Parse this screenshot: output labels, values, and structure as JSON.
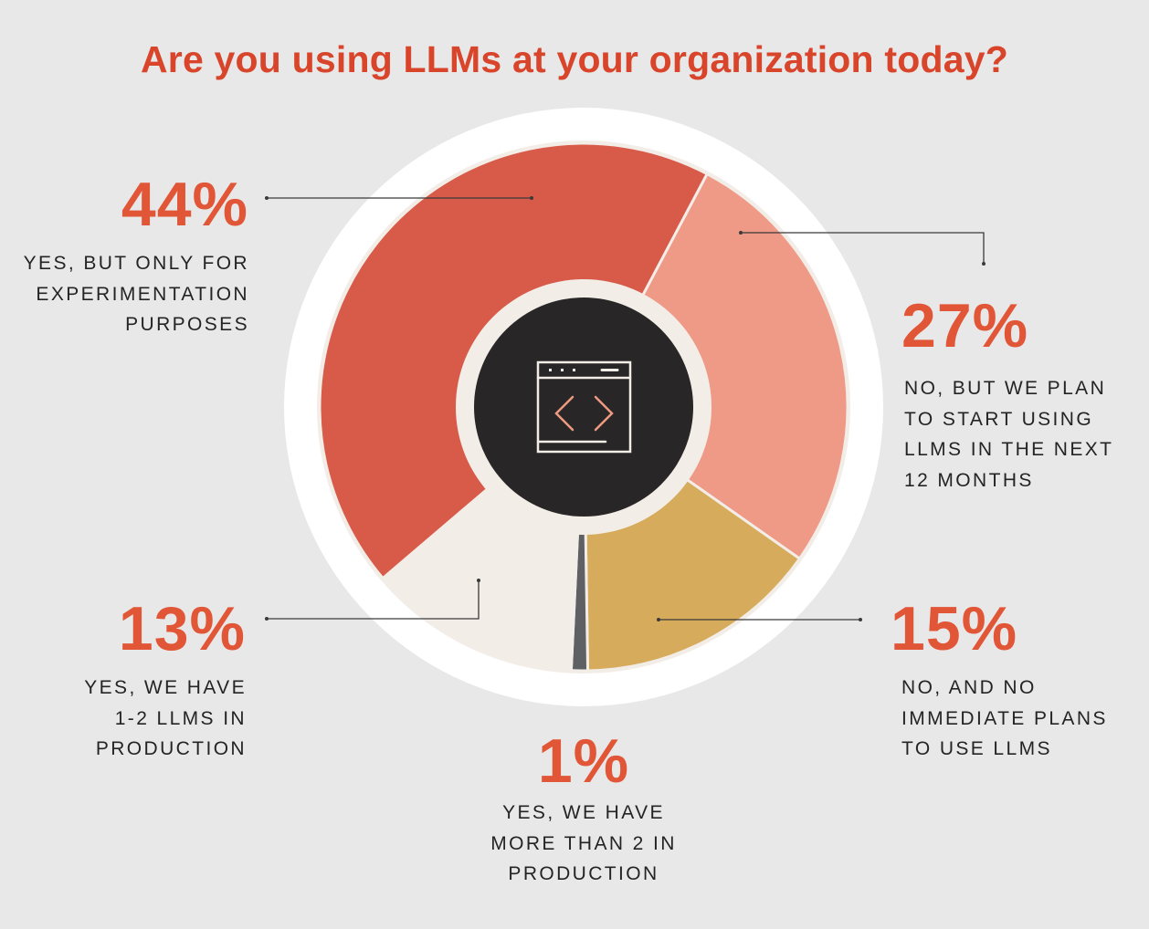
{
  "title": "Are you using LLMs at your organization today?",
  "colors": {
    "background": "#e8e8e8",
    "title": "#d8452b",
    "percent": "#e15636",
    "outer_ring": "#ffffff",
    "inner_ring": "#f3ede8",
    "center": "#282627",
    "icon_stroke": "#f3ede8",
    "icon_accent": "#ee9a80",
    "leader_line": "#3a3a3a"
  },
  "labels": {
    "experimentation": {
      "pct": "44%",
      "desc": "YES, BUT ONLY FOR\nEXPERIMENTATION\nPURPOSES"
    },
    "plan_12_months": {
      "pct": "27%",
      "desc": "NO, BUT WE PLAN\nTO START USING\nLLMS IN THE NEXT\n12 MONTHS"
    },
    "no_plans": {
      "pct": "15%",
      "desc": "NO, AND NO\nIMMEDIATE PLANS\nTO USE LLMS"
    },
    "more_than_2": {
      "pct": "1%",
      "desc": "YES, WE HAVE\nMORE THAN 2 IN\nPRODUCTION"
    },
    "one_two": {
      "pct": "13%",
      "desc": "YES, WE HAVE\n1-2 LLMS IN\nPRODUCTION"
    }
  },
  "center_icon": "code-window-icon",
  "chart_data": {
    "type": "pie",
    "title": "Are you using LLMs at your organization today?",
    "categories": [
      "Yes, but only for experimentation purposes",
      "No, but we plan to start using LLMs in the next 12 months",
      "No, and no immediate plans to use LLMs",
      "Yes, we have more than 2 in production",
      "Yes, we have 1-2 LLMs in production"
    ],
    "values": [
      44,
      27,
      15,
      1,
      13
    ],
    "unit": "%",
    "colors": [
      "#d85b49",
      "#ef9987",
      "#d6ac5c",
      "#5f6064",
      "#f3ede8"
    ],
    "start_angle_deg": 229.5,
    "direction": "clockwise",
    "donut": true,
    "legend": "none (direct labels with leader lines)"
  }
}
